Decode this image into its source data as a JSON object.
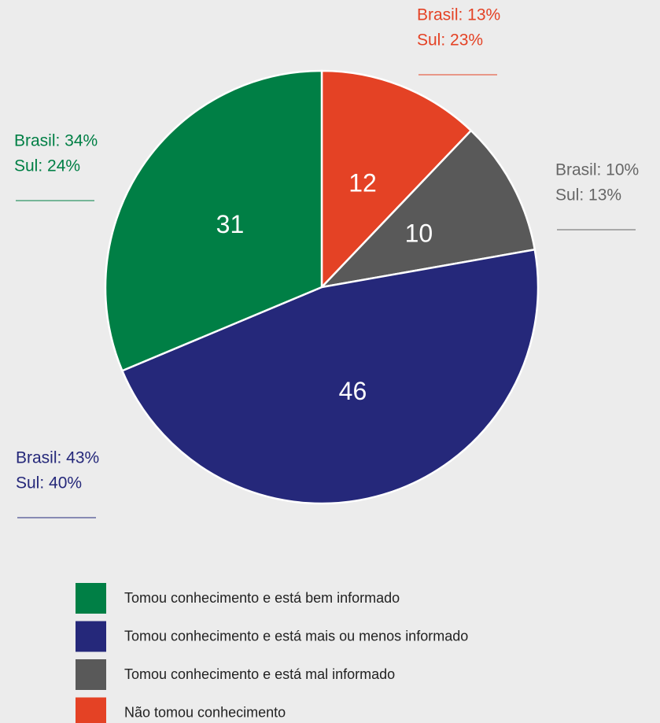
{
  "chart_data": {
    "type": "pie",
    "categories": [
      "Tomou conhecimento e está bem informado",
      "Tomou conhecimento e está mais ou menos informado",
      "Tomou conhecimento e está mal informado",
      "Não tomou conhecimento"
    ],
    "values": [
      31,
      46,
      10,
      12
    ],
    "colors": [
      "#007f45",
      "#25287a",
      "#595959",
      "#e44225"
    ],
    "annotations": [
      [
        "Brasil: 34%",
        "Sul: 24%"
      ],
      [
        "Brasil: 43%",
        "Sul: 40%"
      ],
      [
        "Brasil: 10%",
        "Sul: 13%"
      ],
      [
        "Brasil: 13%",
        "Sul: 23%"
      ]
    ]
  }
}
